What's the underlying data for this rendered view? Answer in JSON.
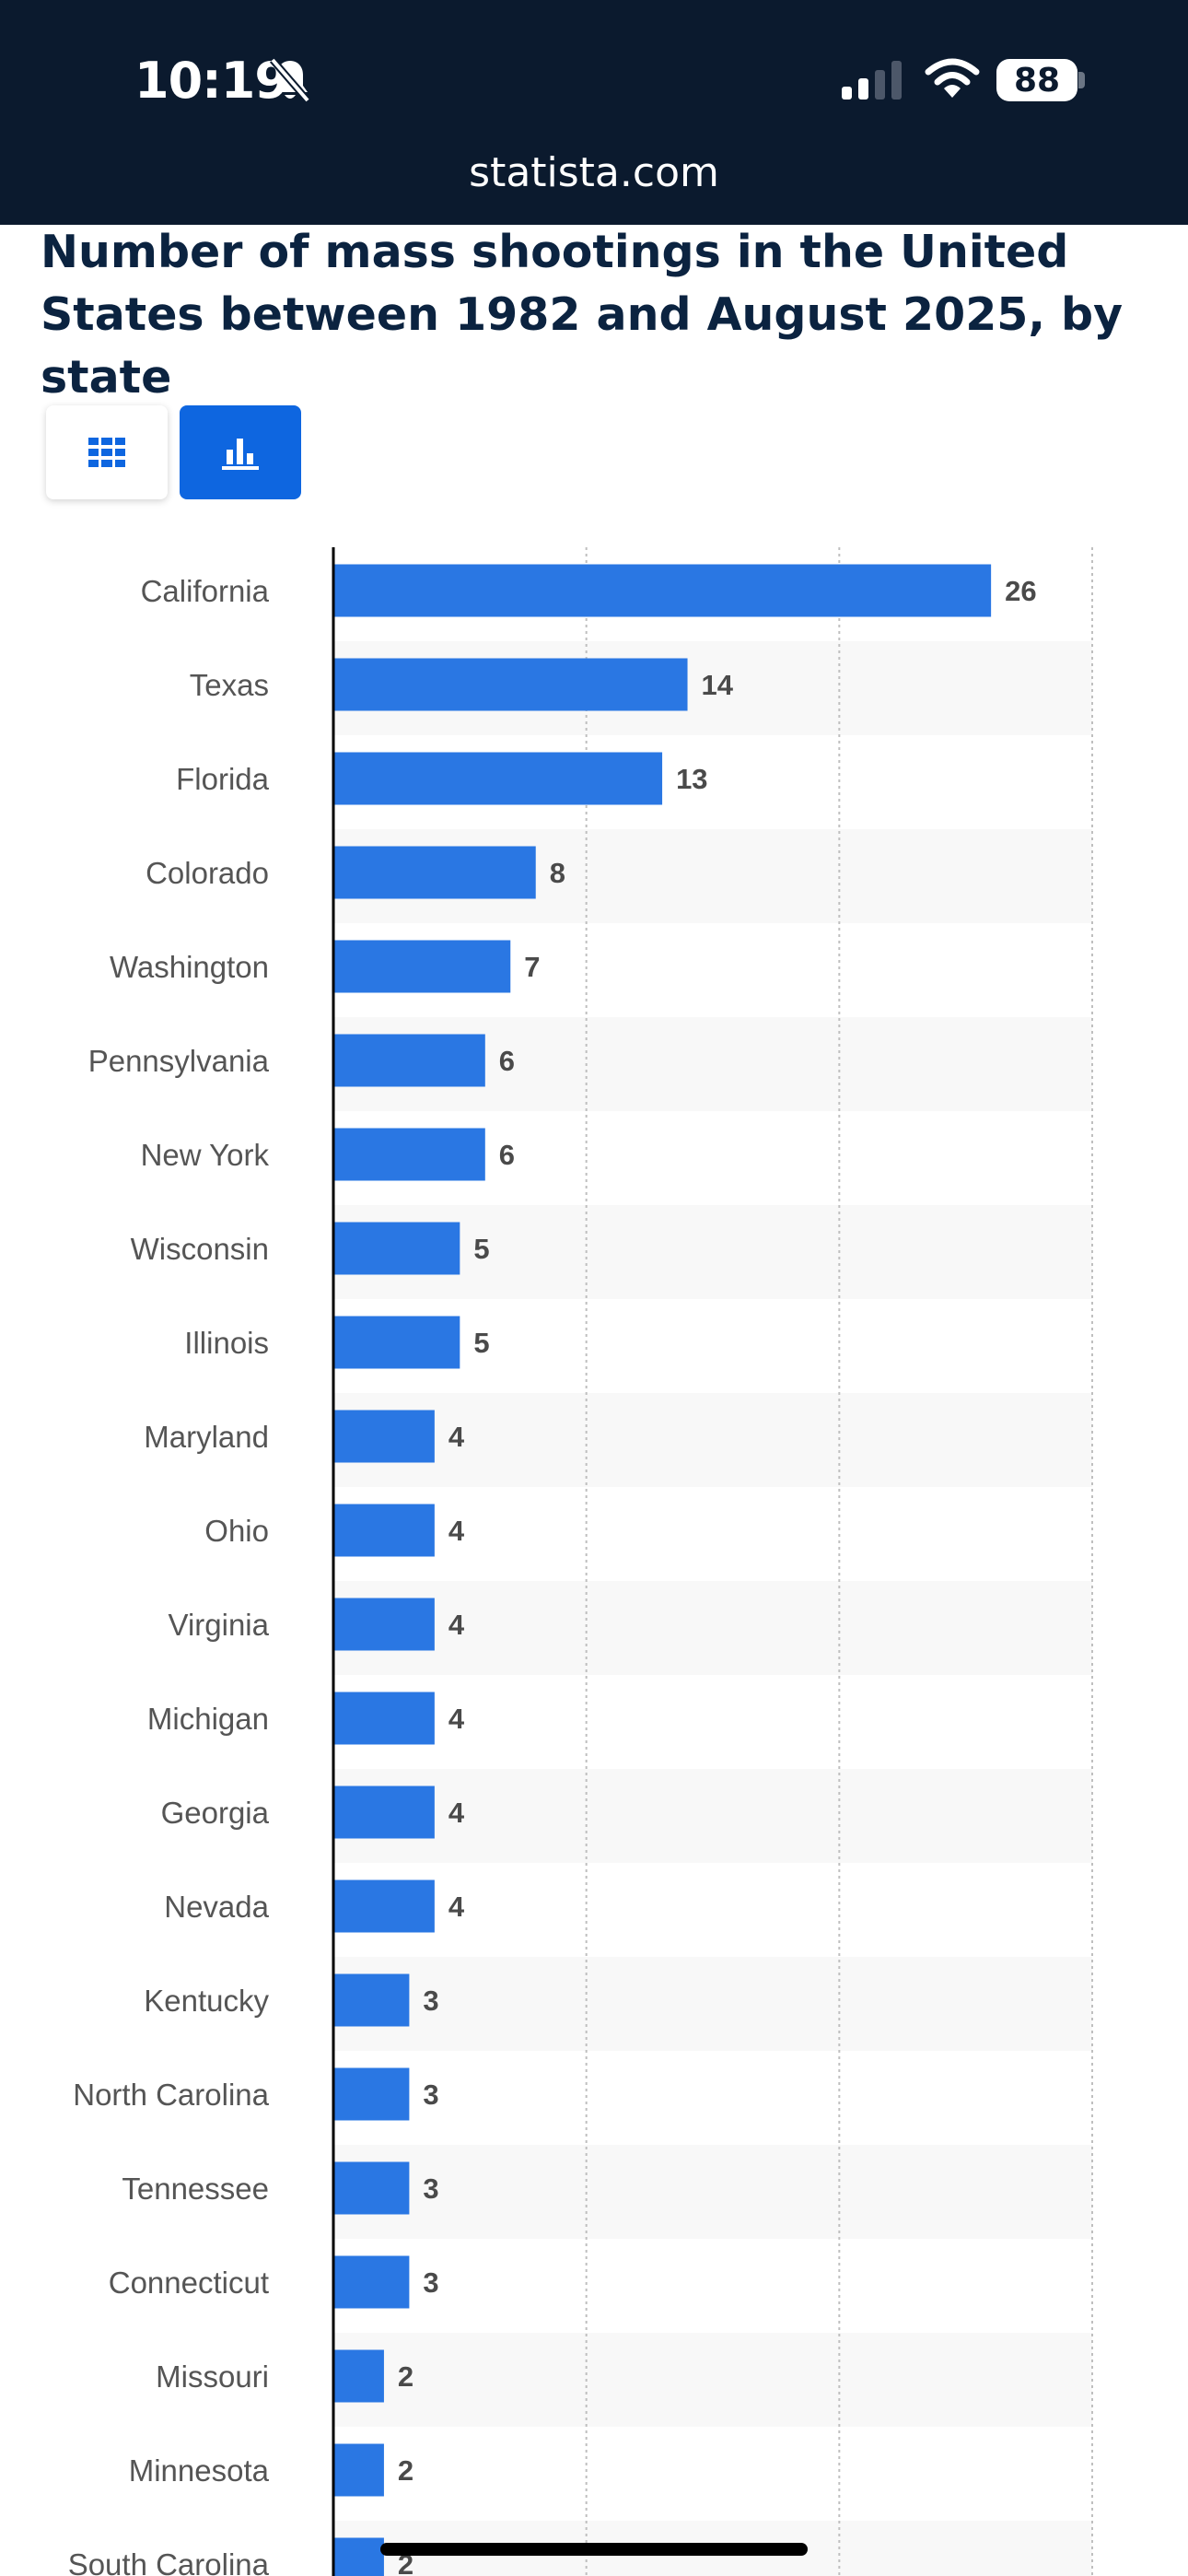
{
  "status_bar": {
    "time": "10:19",
    "battery": "88",
    "icons": [
      "bell-slash-icon",
      "cellular-signal-icon",
      "wifi-icon",
      "battery-icon"
    ]
  },
  "browser": {
    "url": "statista.com"
  },
  "view_toggle": {
    "options": [
      "table-view",
      "chart-view"
    ],
    "selected": "chart-view"
  },
  "colors": {
    "bar": "#2a77e3",
    "accent": "#0e66e0",
    "header_bg": "#0b1a2e",
    "title": "#0b2340"
  },
  "chart_data": {
    "type": "bar",
    "orientation": "horizontal",
    "title": "Number of mass shootings in the United States between 1982 and August 2025, by state",
    "categories": [
      "California",
      "Texas",
      "Florida",
      "Colorado",
      "Washington",
      "Pennsylvania",
      "New York",
      "Wisconsin",
      "Illinois",
      "Maryland",
      "Ohio",
      "Virginia",
      "Michigan",
      "Georgia",
      "Nevada",
      "Kentucky",
      "North Carolina",
      "Tennessee",
      "Connecticut",
      "Missouri",
      "Minnesota",
      "South Carolina"
    ],
    "values": [
      26,
      14,
      13,
      8,
      7,
      6,
      6,
      5,
      5,
      4,
      4,
      4,
      4,
      4,
      4,
      3,
      3,
      3,
      3,
      2,
      2,
      2
    ],
    "xlim": [
      0,
      30
    ],
    "grid": true,
    "data_labels": true
  }
}
